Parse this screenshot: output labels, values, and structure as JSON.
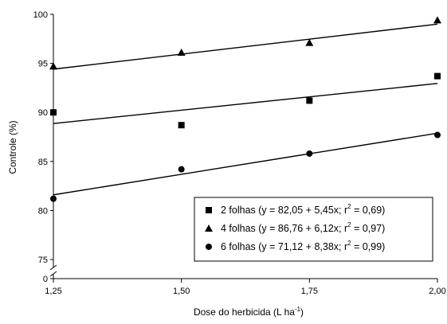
{
  "chart_data": {
    "type": "scatter",
    "xlabel_main": "Dose do herbicida (L ha",
    "xlabel_sup": "-1",
    "xlabel_end": ")",
    "ylabel": "Controle (%)",
    "x_ticks": [
      1.25,
      1.5,
      1.75,
      2.0
    ],
    "x_tick_labels": [
      "1,25",
      "1,50",
      "1,75",
      "2,00"
    ],
    "xlim": [
      1.25,
      2.0
    ],
    "y_ticks": [
      75,
      80,
      85,
      90,
      95,
      100
    ],
    "y_tick_labels": [
      "75",
      "80",
      "85",
      "90",
      "95",
      "100"
    ],
    "y_zero_label": "0",
    "ylim": [
      75,
      100
    ],
    "y_axis_break": true,
    "grid": false,
    "legend_position": "bottom-right",
    "series": [
      {
        "name": "2 folhas",
        "marker": "square",
        "x": [
          1.25,
          1.5,
          1.75,
          2.0
        ],
        "y": [
          90.0,
          88.7,
          91.2,
          93.7
        ],
        "fit": {
          "intercept": 82.05,
          "slope": 5.45
        },
        "legend_eq": "(y = 82,05 + 5,45x;  r",
        "legend_r2": "= 0,69)"
      },
      {
        "name": "4 folhas",
        "marker": "triangle",
        "x": [
          1.25,
          1.5,
          1.75,
          2.0
        ],
        "y": [
          94.7,
          96.1,
          97.1,
          99.4
        ],
        "fit": {
          "intercept": 86.76,
          "slope": 6.12
        },
        "legend_eq": "(y = 86,76 + 6,12x;  r",
        "legend_r2": "= 0,97)"
      },
      {
        "name": "6 folhas",
        "marker": "circle",
        "x": [
          1.25,
          1.5,
          1.75,
          2.0
        ],
        "y": [
          81.2,
          84.2,
          85.8,
          87.7
        ],
        "fit": {
          "intercept": 71.12,
          "slope": 8.38
        },
        "legend_eq": "(y = 71,12 + 8,38x;  r",
        "legend_r2": "= 0,99)"
      }
    ],
    "sup_two": "2"
  }
}
